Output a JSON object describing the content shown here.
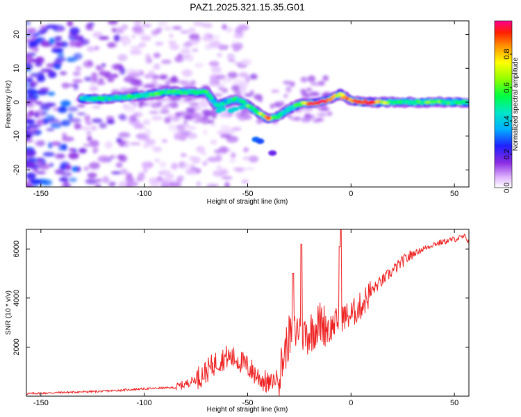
{
  "figure_title": "PAZ1.2025.321.15.35.G01",
  "chart_data": [
    {
      "type": "heatmap",
      "title": "PAZ1.2025.321.15.35.G01",
      "xlabel": "Height of straight line (km)",
      "ylabel": "Frequency (Hz)",
      "xlim": [
        -157,
        57
      ],
      "ylim": [
        -25,
        24
      ],
      "xticks": [
        -150,
        -100,
        -50,
        0,
        50
      ],
      "yticks": [
        -20,
        -10,
        0,
        10,
        20
      ],
      "colorbar": {
        "label": "Normalized spectral amplitude",
        "range": [
          0,
          1
        ],
        "ticks": [
          0,
          0.2,
          0.4,
          0.6,
          0.8
        ],
        "tick_labels": [
          "0.0",
          "0.2",
          "0.4",
          "0.6",
          "0.8"
        ]
      },
      "ridge": {
        "x": [
          -130,
          -120,
          -110,
          -100,
          -90,
          -80,
          -70,
          -65,
          -60,
          -55,
          -50,
          -45,
          -40,
          -35,
          -30,
          -25,
          -20,
          -15,
          -10,
          -5,
          0,
          5,
          10,
          20,
          30,
          40,
          50,
          57
        ],
        "frequency": [
          1,
          1,
          1.5,
          2,
          3,
          3,
          3,
          -1,
          0,
          1,
          -1,
          -3,
          -5,
          -4,
          -2,
          -0.5,
          -0.3,
          0,
          1,
          2.5,
          0.5,
          0,
          0,
          0,
          0,
          0,
          0,
          0
        ],
        "amplitude": [
          0.45,
          0.45,
          0.5,
          0.5,
          0.55,
          0.5,
          0.5,
          0.45,
          0.4,
          0.5,
          0.55,
          0.6,
          0.8,
          0.5,
          0.45,
          0.55,
          0.9,
          0.95,
          0.9,
          0.7,
          0.9,
          0.9,
          0.95,
          0.5,
          0.5,
          0.6,
          0.5,
          0.5
        ]
      }
    },
    {
      "type": "line",
      "xlabel": "Height of straight line (km)",
      "ylabel": "SNR (10 * v/v)",
      "xlim": [
        -157,
        57
      ],
      "ylim": [
        0,
        6800
      ],
      "xticks": [
        -150,
        -100,
        -50,
        0,
        50
      ],
      "yticks": [
        2000,
        4000,
        6000
      ],
      "series": [
        {
          "name": "SNR",
          "color": "#ee2020",
          "x": [
            -157,
            -140,
            -120,
            -100,
            -85,
            -80,
            -75,
            -70,
            -65,
            -60,
            -55,
            -50,
            -45,
            -40,
            -35,
            -32,
            -30,
            -27,
            -25,
            -22,
            -20,
            -15,
            -10,
            -5,
            0,
            5,
            10,
            15,
            20,
            25,
            30,
            35,
            40,
            45,
            50,
            55,
            57
          ],
          "values": [
            100,
            150,
            200,
            300,
            350,
            500,
            700,
            1000,
            1400,
            1600,
            1500,
            1200,
            800,
            500,
            800,
            1800,
            2400,
            2600,
            2800,
            2500,
            2600,
            3000,
            2800,
            3200,
            3300,
            3700,
            4300,
            4700,
            5100,
            5500,
            5800,
            6000,
            6200,
            6300,
            6400,
            6500,
            6300
          ]
        }
      ],
      "spikes": [
        {
          "x": -24,
          "value": 6200
        },
        {
          "x": -5,
          "value": 6800
        },
        {
          "x": -5.5,
          "value": 6100
        },
        {
          "x": -28,
          "value": 5000
        }
      ]
    }
  ]
}
